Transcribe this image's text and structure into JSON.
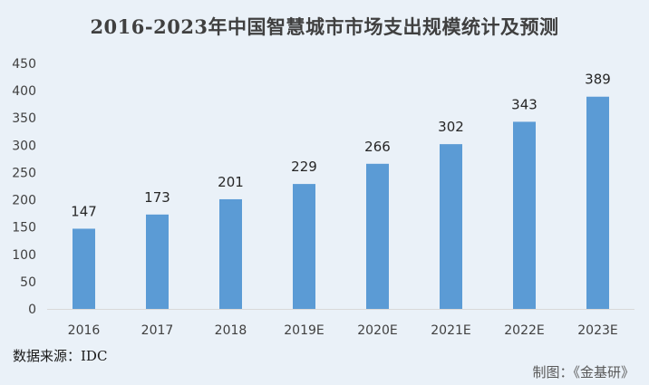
{
  "chart_data": {
    "type": "bar",
    "title": "2016-2023年中国智慧城市市场支出规模统计及预测",
    "categories": [
      "2016",
      "2017",
      "2018",
      "2019E",
      "2020E",
      "2021E",
      "2022E",
      "2023E"
    ],
    "values": [
      147,
      173,
      201,
      229,
      266,
      302,
      343,
      389
    ],
    "ylim": [
      0,
      450
    ],
    "yticks": [
      0,
      50,
      100,
      150,
      200,
      250,
      300,
      350,
      400,
      450
    ],
    "xlabel": "",
    "ylabel": "",
    "grid": false,
    "bar_color": "#5b9bd5",
    "data_labels": true
  },
  "footer": {
    "source": "数据来源：IDC",
    "credit": "制图：《金基研》"
  }
}
